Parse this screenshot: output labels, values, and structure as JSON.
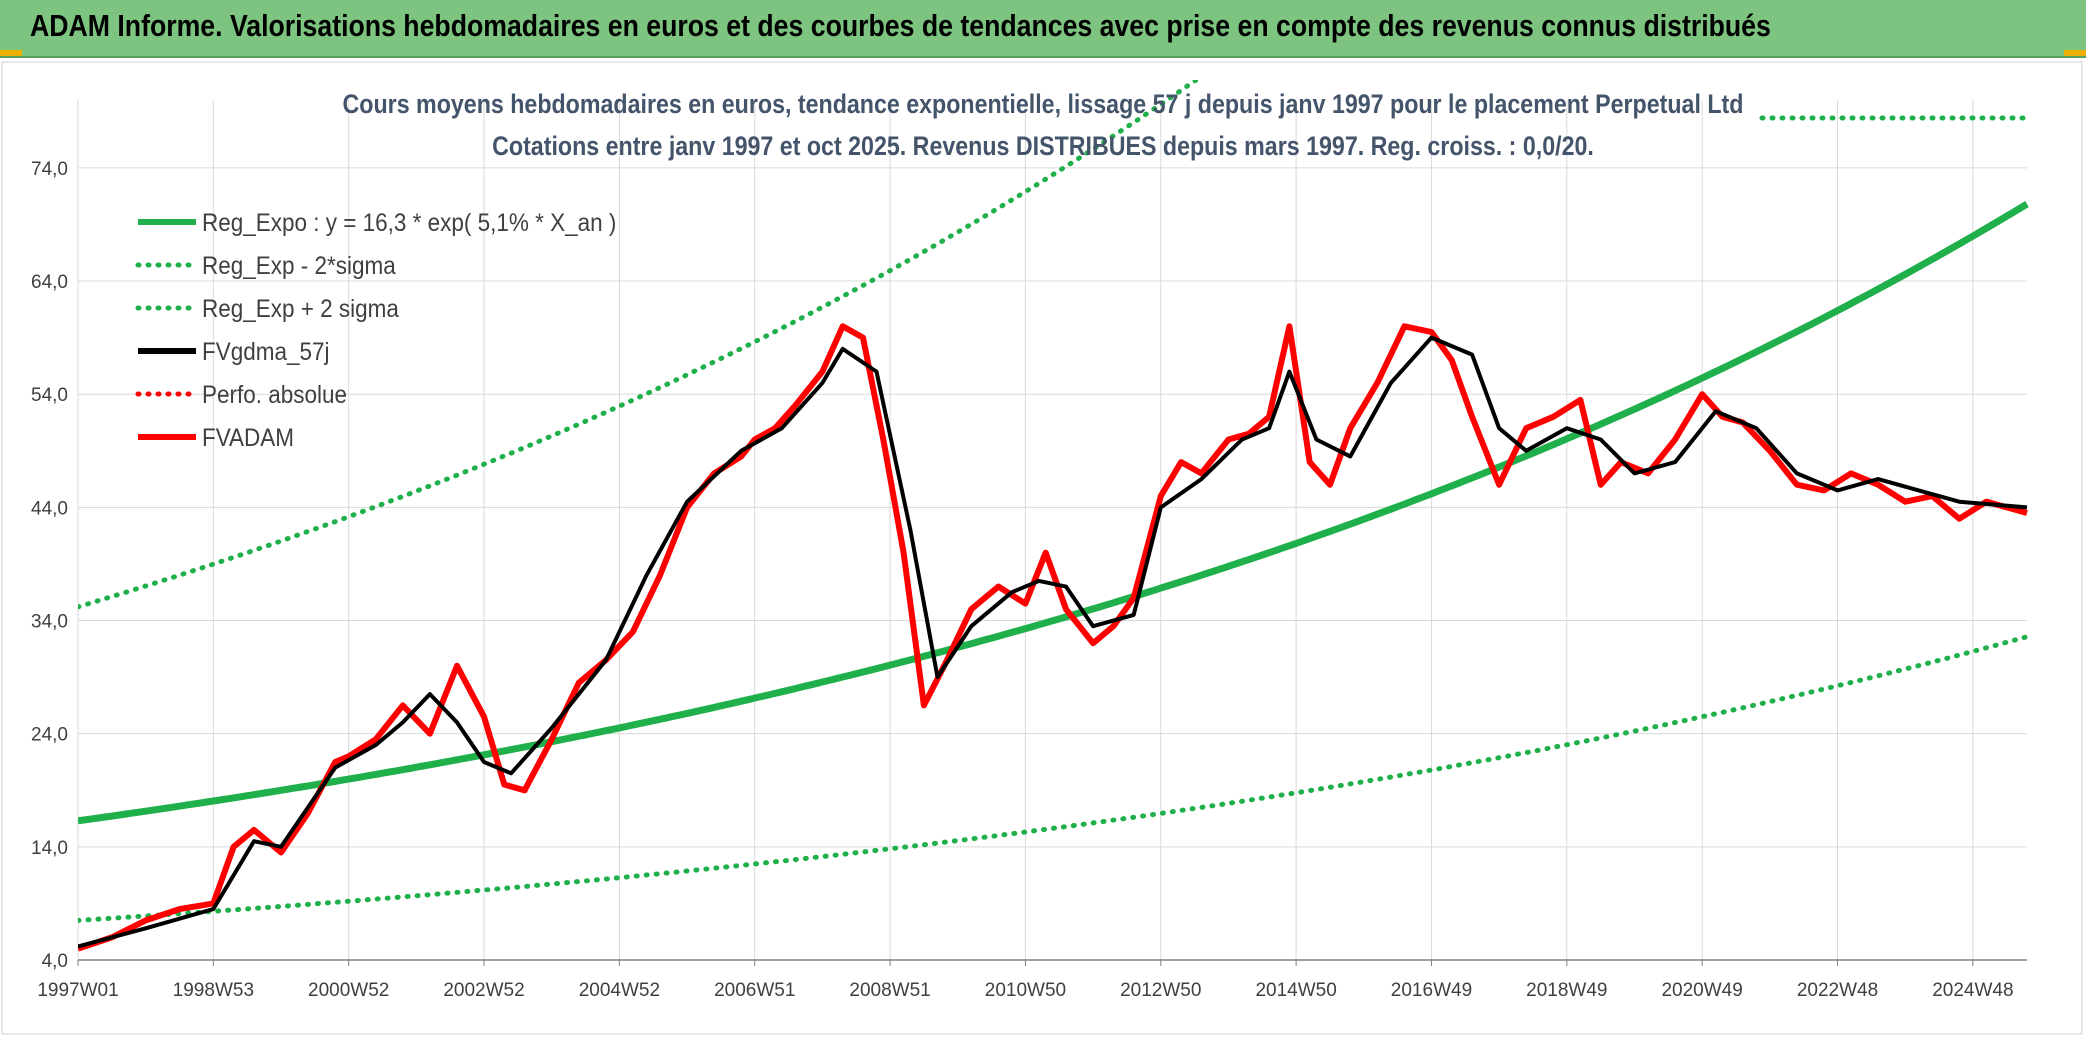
{
  "banner": {
    "title": "ADAM Informe. Valorisations hebdomadaires en euros et des courbes de tendances avec prise en compte des revenus connus distribués"
  },
  "colors": {
    "banner_bg": "#7cc47f",
    "green": "#1fb04b",
    "red": "#ff0000",
    "black": "#000000",
    "title": "#44546a",
    "grid": "#d9d9d9"
  },
  "chart_data": {
    "type": "line",
    "title_line1": "Cours moyens hebdomadaires en euros, tendance exponentielle, lissage 57 j depuis janv 1997 pour le placement Perpetual Ltd",
    "title_line2": "Cotations entre janv 1997 et oct 2025. Revenus DISTRIBUES depuis mars 1997. Reg. croiss. : 0,0/20.",
    "xlim": [
      1997.0,
      2025.8
    ],
    "ylim": [
      4,
      80
    ],
    "grid": "horizontal and vertical",
    "legend_position": "top-left",
    "y_ticks": [
      "74,0",
      "64,0",
      "54,0",
      "44,0",
      "34,0",
      "24,0",
      "14,0",
      "4,0"
    ],
    "y_tick_values": [
      74,
      64,
      54,
      44,
      34,
      24,
      14,
      4
    ],
    "x_ticks": [
      "1997W01",
      "1998W53",
      "2000W52",
      "2002W52",
      "2004W52",
      "2006W51",
      "2008W51",
      "2010W50",
      "2012W50",
      "2014W50",
      "2016W49",
      "2018W49",
      "2020W49",
      "2022W48",
      "2024W48"
    ],
    "x_tick_values": [
      1997.0,
      1999.0,
      2001.0,
      2003.0,
      2005.0,
      2007.0,
      2009.0,
      2011.0,
      2013.0,
      2015.0,
      2017.0,
      2019.0,
      2021.0,
      2023.0,
      2025.0
    ],
    "legend": [
      {
        "label": "Reg_Expo : y = 16,3 * exp( 5,1% *  X_an )",
        "color": "#1fb04b",
        "style": "solid"
      },
      {
        "label": "Reg_Exp - 2*sigma",
        "color": "#1fb04b",
        "style": "dotted"
      },
      {
        "label": "Reg_Exp + 2 sigma",
        "color": "#1fb04b",
        "style": "dotted"
      },
      {
        "label": "FVgdma_57j",
        "color": "#000000",
        "style": "solid"
      },
      {
        "label": "Perfo. absolue",
        "color": "#ff0000",
        "style": "dotted"
      },
      {
        "label": "FVADAM",
        "color": "#ff0000",
        "style": "solid"
      }
    ],
    "trend": {
      "a": 16.3,
      "growth": 0.051,
      "minus2sigma_factor": 0.46,
      "plus2sigma_factor": 2.16
    },
    "series": [
      {
        "name": "FVADAM",
        "x": [
          1997.0,
          1997.5,
          1998.0,
          1998.5,
          1999.0,
          1999.3,
          1999.6,
          2000.0,
          2000.4,
          2000.8,
          2001.0,
          2001.4,
          2001.8,
          2002.2,
          2002.6,
          2003.0,
          2003.3,
          2003.6,
          2004.0,
          2004.4,
          2004.8,
          2005.2,
          2005.6,
          2006.0,
          2006.4,
          2006.8,
          2007.0,
          2007.3,
          2007.6,
          2008.0,
          2008.3,
          2008.6,
          2008.9,
          2009.2,
          2009.5,
          2009.8,
          2010.2,
          2010.6,
          2011.0,
          2011.3,
          2011.6,
          2012.0,
          2012.3,
          2012.6,
          2013.0,
          2013.3,
          2013.6,
          2014.0,
          2014.3,
          2014.6,
          2014.9,
          2015.2,
          2015.5,
          2015.8,
          2016.2,
          2016.6,
          2017.0,
          2017.3,
          2017.6,
          2018.0,
          2018.4,
          2018.8,
          2019.2,
          2019.5,
          2019.8,
          2020.2,
          2020.6,
          2021.0,
          2021.3,
          2021.6,
          2022.0,
          2022.4,
          2022.8,
          2023.2,
          2023.6,
          2024.0,
          2024.4,
          2024.8,
          2025.2,
          2025.8
        ],
        "y": [
          5.0,
          6.0,
          7.5,
          8.5,
          9.0,
          14.0,
          15.5,
          13.5,
          17.0,
          21.5,
          22.0,
          23.5,
          26.5,
          24.0,
          30.0,
          25.5,
          19.5,
          19.0,
          23.5,
          28.5,
          30.5,
          33.0,
          38.0,
          44.0,
          47.0,
          48.5,
          50.0,
          51.0,
          53.0,
          56.0,
          60.0,
          59.0,
          50.0,
          40.0,
          26.5,
          30.0,
          35.0,
          37.0,
          35.5,
          40.0,
          35.0,
          32.0,
          33.5,
          36.0,
          45.0,
          48.0,
          47.0,
          50.0,
          50.5,
          52.0,
          60.0,
          48.0,
          46.0,
          51.0,
          55.0,
          60.0,
          59.5,
          57.0,
          52.0,
          46.0,
          51.0,
          52.0,
          53.5,
          46.0,
          48.0,
          47.0,
          50.0,
          54.0,
          52.0,
          51.5,
          49.0,
          46.0,
          45.5,
          47.0,
          46.0,
          44.5,
          45.0,
          43.0,
          44.5,
          43.5
        ]
      },
      {
        "name": "FVgdma_57j",
        "x": [
          1997.0,
          1998.0,
          1999.0,
          1999.6,
          2000.0,
          2000.8,
          2001.4,
          2001.8,
          2002.2,
          2002.6,
          2003.0,
          2003.4,
          2004.0,
          2004.8,
          2005.4,
          2006.0,
          2006.8,
          2007.4,
          2008.0,
          2008.3,
          2008.8,
          2009.3,
          2009.7,
          2010.2,
          2010.8,
          2011.2,
          2011.6,
          2012.0,
          2012.6,
          2013.0,
          2013.6,
          2014.2,
          2014.6,
          2014.9,
          2015.3,
          2015.8,
          2016.4,
          2017.0,
          2017.6,
          2018.0,
          2018.4,
          2019.0,
          2019.5,
          2020.0,
          2020.6,
          2021.2,
          2021.8,
          2022.4,
          2023.0,
          2023.6,
          2024.2,
          2024.8,
          2025.8
        ],
        "y": [
          5.2,
          6.8,
          8.5,
          14.5,
          14.0,
          21.0,
          23.0,
          25.0,
          27.5,
          25.0,
          21.5,
          20.5,
          24.5,
          30.5,
          38.0,
          44.5,
          49.0,
          51.0,
          55.0,
          58.0,
          56.0,
          42.0,
          29.0,
          33.5,
          36.5,
          37.5,
          37.0,
          33.5,
          34.5,
          44.0,
          46.5,
          50.0,
          51.0,
          56.0,
          50.0,
          48.5,
          55.0,
          59.0,
          57.5,
          51.0,
          49.0,
          51.0,
          50.0,
          47.0,
          48.0,
          52.5,
          51.0,
          47.0,
          45.5,
          46.5,
          45.5,
          44.5,
          44.0
        ]
      }
    ]
  }
}
